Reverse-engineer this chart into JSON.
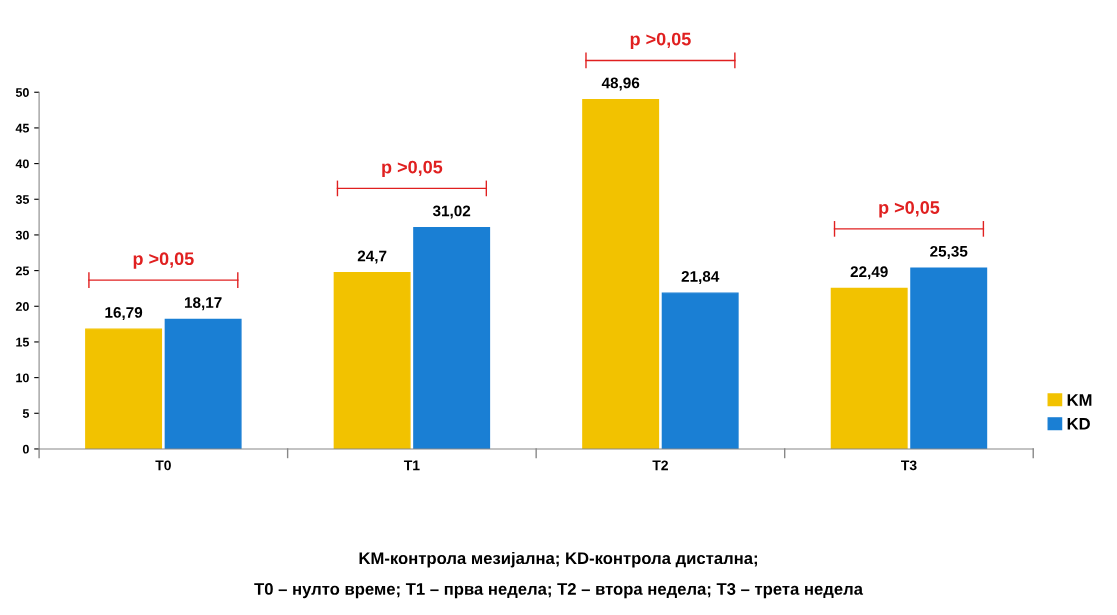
{
  "chart_data": {
    "type": "bar",
    "categories": [
      "T0",
      "T1",
      "T2",
      "T3"
    ],
    "series": [
      {
        "name": "KM",
        "color": "#f2c200",
        "values": [
          16.79,
          24.7,
          48.96,
          22.49
        ],
        "value_labels": [
          "16,79",
          "24,7",
          "48,96",
          "22,49"
        ]
      },
      {
        "name": "KD",
        "color": "#1a7fd4",
        "values": [
          18.17,
          31.02,
          21.84,
          25.35
        ],
        "value_labels": [
          "18,17",
          "31,02",
          "21,84",
          "25,35"
        ]
      }
    ],
    "ylim": [
      0,
      50
    ],
    "yticks": [
      0,
      5,
      10,
      15,
      20,
      25,
      30,
      35,
      40,
      45,
      50
    ],
    "grid": false,
    "legend": "right",
    "annotations": [
      "p >0,05",
      "p >0,05",
      "p >0,05",
      "p >0,05",
      "KM-контрола мезијална; KD-контрола дистална;",
      "T0 – нулто време; T1 – прва недела; T2 – втора недела; T3 – трета недела"
    ]
  }
}
